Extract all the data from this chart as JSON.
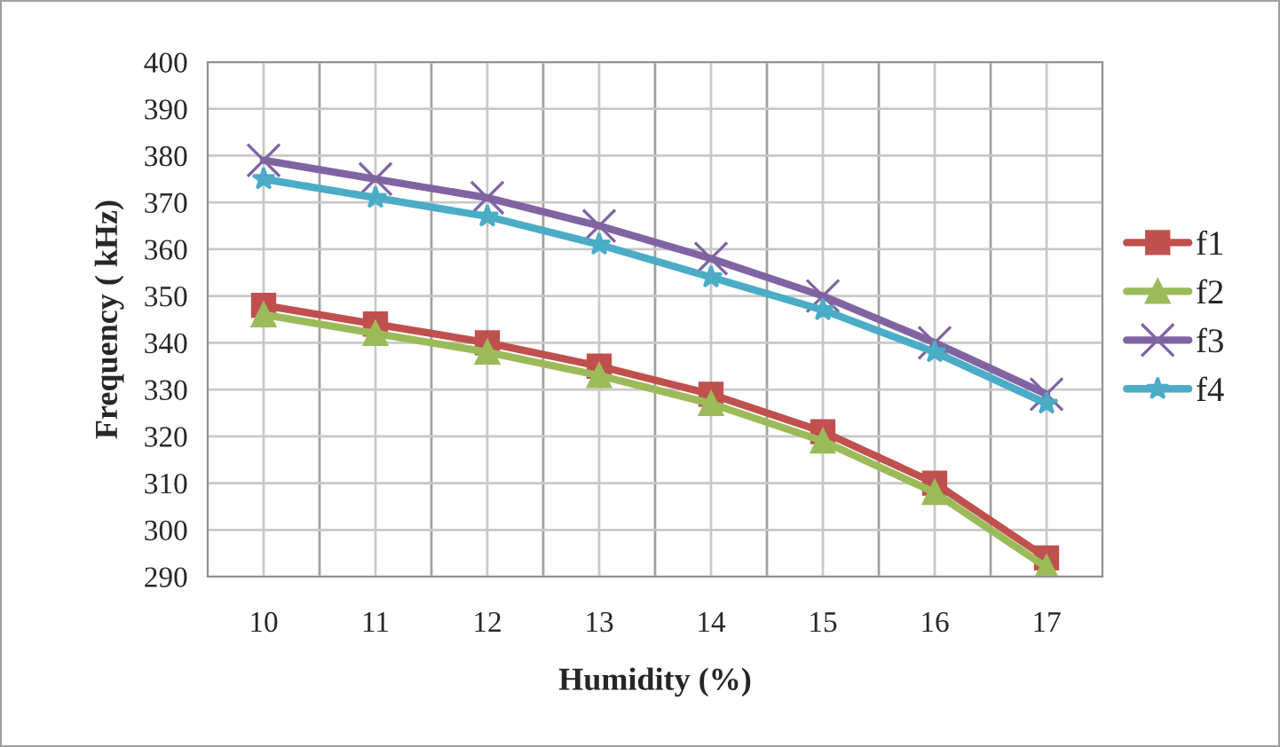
{
  "chart_data": {
    "type": "line",
    "xlabel": "Humidity (%)",
    "ylabel": "Frequency ( kHz)",
    "categories": [
      "10",
      "11",
      "12",
      "13",
      "14",
      "15",
      "16",
      "17"
    ],
    "series": [
      {
        "name": "f1",
        "color": "#c0504d",
        "marker": "square",
        "values": [
          348,
          344,
          340,
          335,
          329,
          321,
          310,
          294
        ]
      },
      {
        "name": "f2",
        "color": "#9bbb59",
        "marker": "triangle",
        "values": [
          346,
          342,
          338,
          333,
          327,
          319,
          308,
          292
        ]
      },
      {
        "name": "f3",
        "color": "#8064a2",
        "marker": "cross",
        "values": [
          379,
          375,
          371,
          365,
          358,
          350,
          340,
          329
        ]
      },
      {
        "name": "f4",
        "color": "#4bacc6",
        "marker": "star",
        "values": [
          375,
          371,
          367,
          361,
          354,
          347,
          338,
          327
        ]
      }
    ],
    "ylim": [
      290,
      400
    ],
    "yticks": [
      290,
      300,
      310,
      320,
      330,
      340,
      350,
      360,
      370,
      380,
      390,
      400
    ],
    "grid": true,
    "legend": "right",
    "line_style": "solid"
  }
}
